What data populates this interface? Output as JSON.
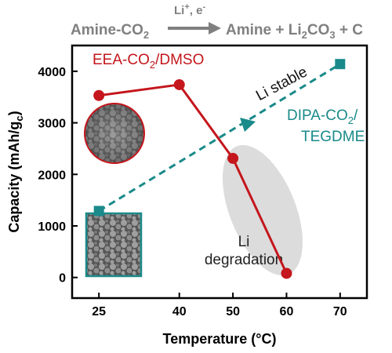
{
  "header": {
    "reactant": "Amine-CO",
    "reactant_sub": "2",
    "arrow_label_li": "Li",
    "arrow_label_li_sup": "+",
    "arrow_label_rest": ", e",
    "arrow_label_e_sup": "-",
    "products_a": "Amine + Li",
    "products_sub": "2",
    "products_b": "CO",
    "products_sub2": "3",
    "products_c": " + C"
  },
  "annotations": {
    "li_stable": "Li stable",
    "li_degradation_line1": "Li",
    "li_degradation_line2": "degradation"
  },
  "colors": {
    "eea": "#c4161c",
    "dipa": "#1a8a8a",
    "header_gray": "#808080",
    "ellipse_fill": "#d8d8d8"
  },
  "chart_data": {
    "type": "line",
    "xlabel": "Temperature (°C)",
    "ylabel": "Capacity (mAh/g",
    "ylabel_sub": "c",
    "ylabel_end": ")",
    "xlim": [
      20,
      75
    ],
    "ylim": [
      -400,
      4500
    ],
    "x_ticks": [
      25,
      40,
      50,
      60,
      70
    ],
    "y_ticks": [
      0,
      1000,
      2000,
      3000,
      4000
    ],
    "series": [
      {
        "name": "EEA-CO2/DMSO",
        "label_parts": [
          "EEA-CO",
          "2",
          "/DMSO"
        ],
        "color": "#c4161c",
        "style": "solid",
        "marker": "circle",
        "x": [
          25,
          40,
          50,
          60
        ],
        "y": [
          3530,
          3740,
          2310,
          80
        ]
      },
      {
        "name": "DIPA-CO2/TEGDME",
        "label_parts": [
          "DIPA-CO",
          "2",
          "/",
          "TEGDME"
        ],
        "color": "#1a8a8a",
        "style": "dashed",
        "marker": "square",
        "x": [
          25,
          70
        ],
        "y": [
          1290,
          4140
        ]
      }
    ]
  }
}
